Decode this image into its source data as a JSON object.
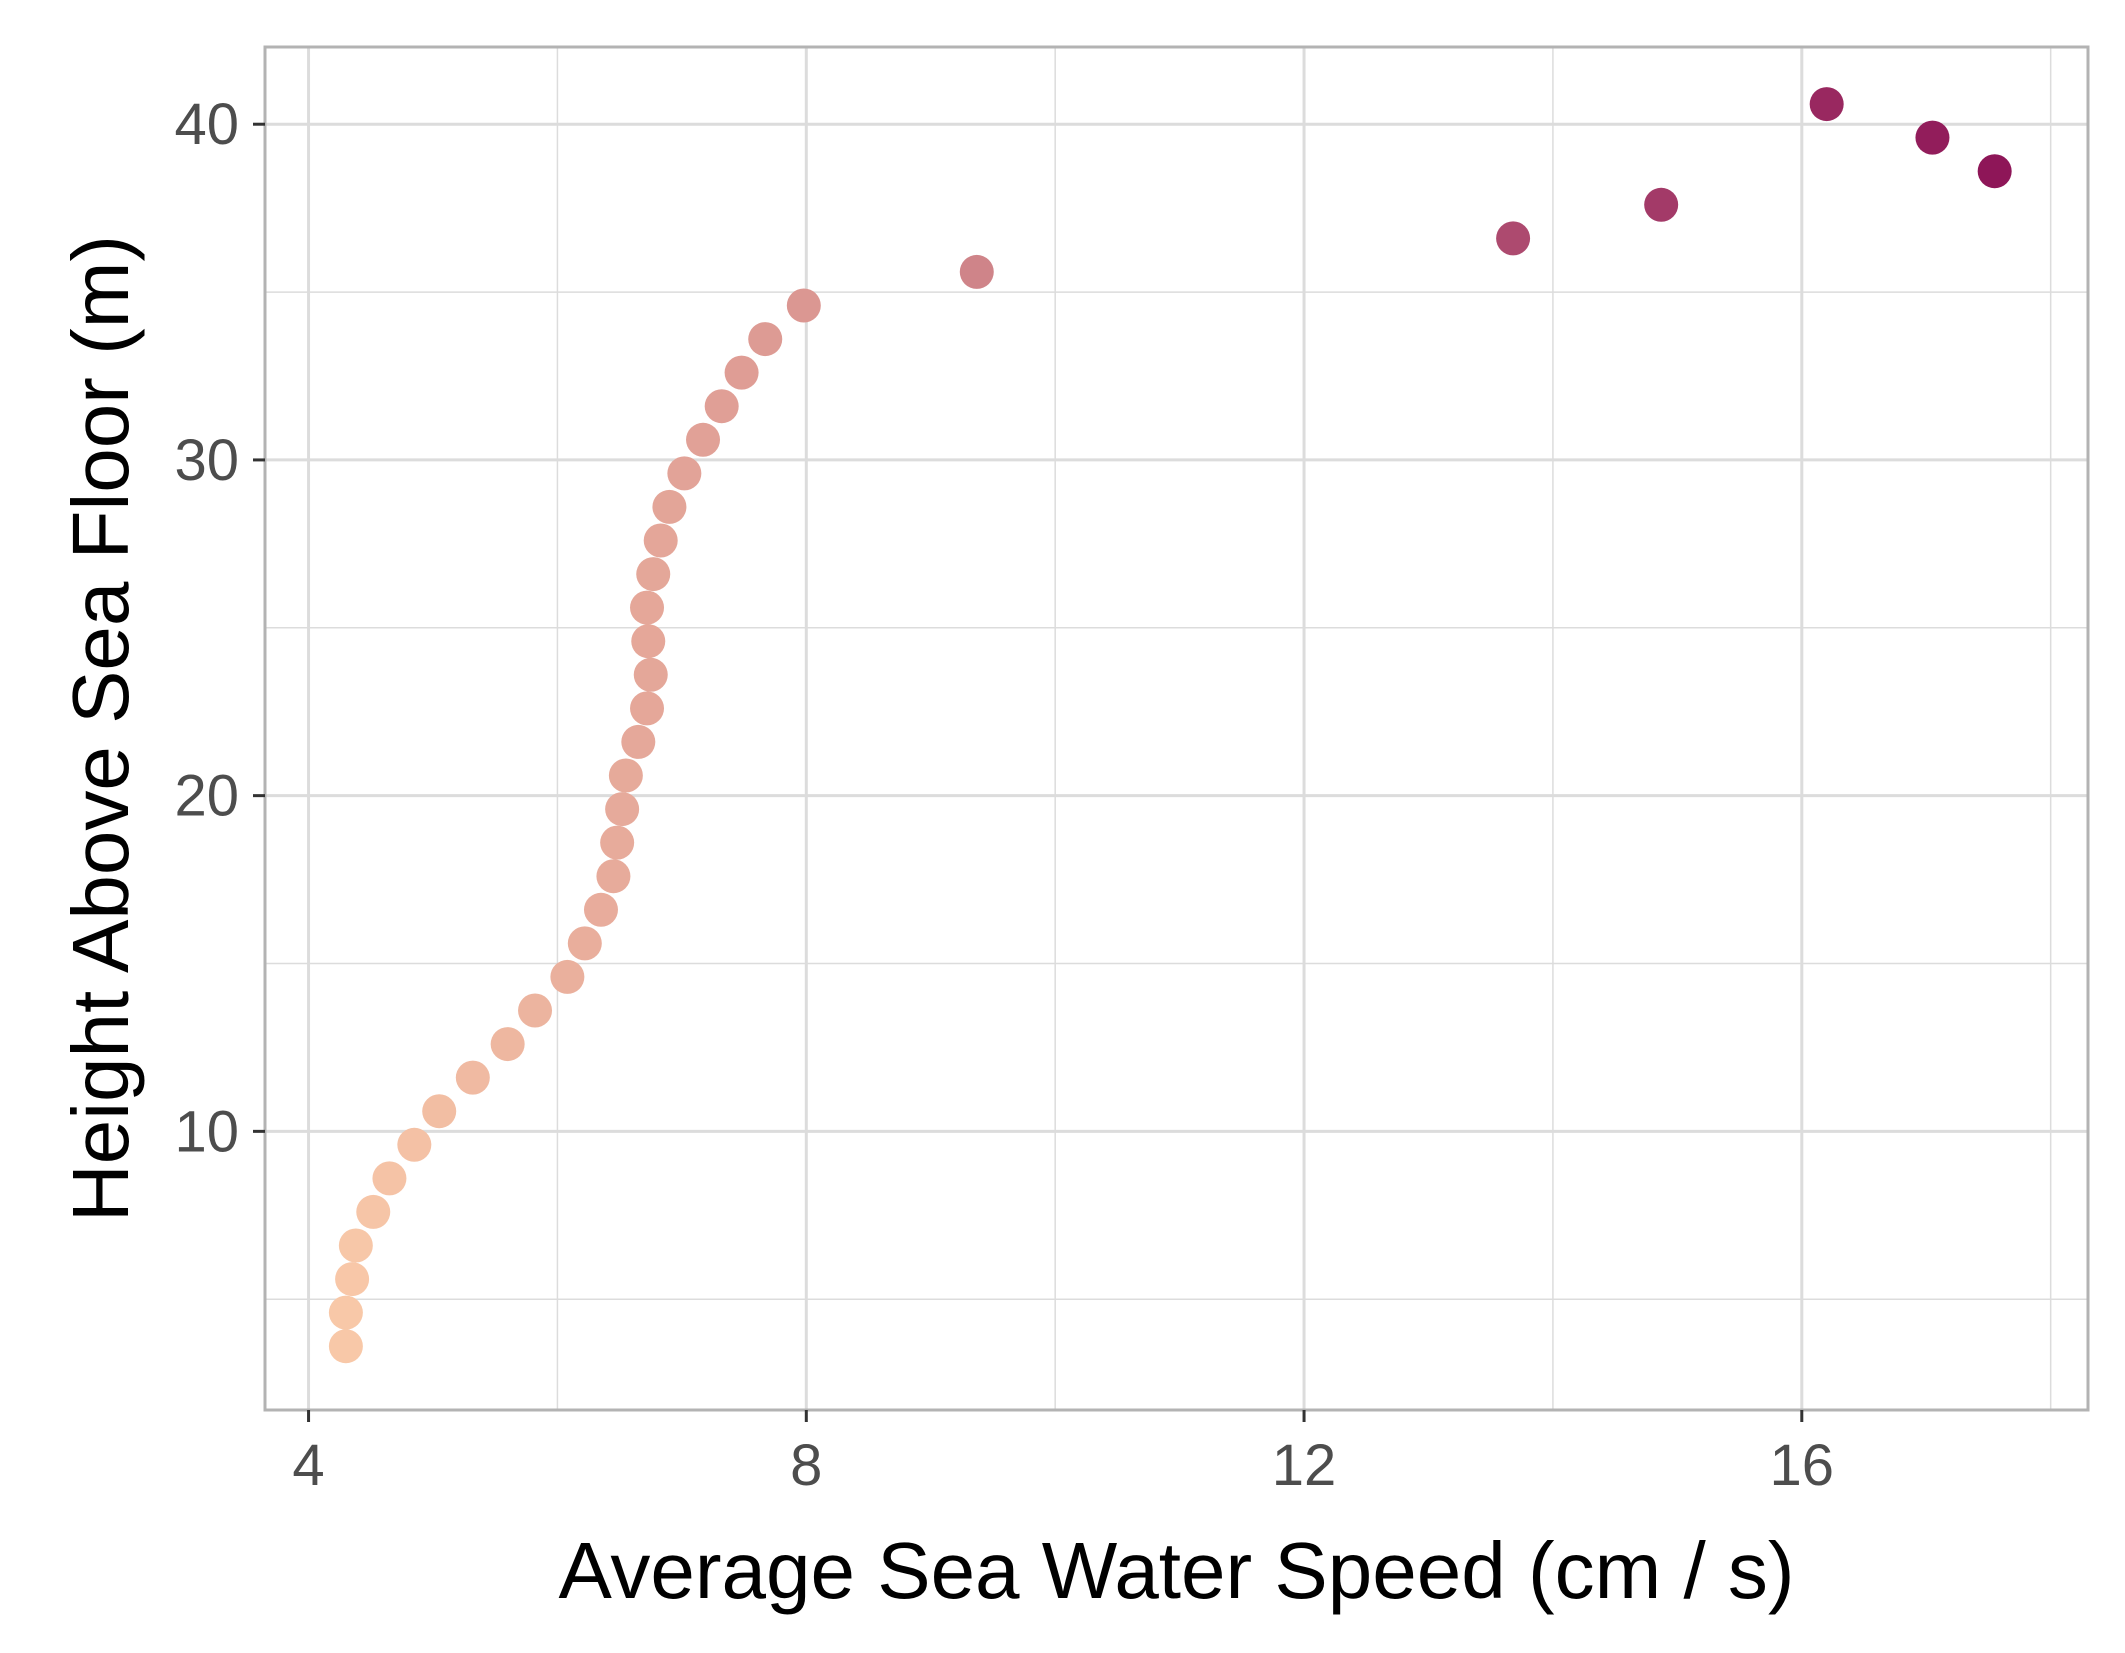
{
  "chart_data": {
    "type": "scatter",
    "title": "",
    "xlabel": "Average Sea Water Speed (cm / s)",
    "ylabel": "Height Above Sea Floor (m)",
    "xlim": [
      3.65,
      18.3
    ],
    "ylim": [
      1.7,
      42.3
    ],
    "xticks": [
      4,
      8,
      12,
      16
    ],
    "yticks": [
      10,
      20,
      30,
      40
    ],
    "grid": true,
    "legend": "none",
    "color_low": "#f8c8a8",
    "color_high": "#8e1658",
    "grid_color": "#dcdcdc",
    "panel_border_color": "#b3b3b3",
    "points": [
      {
        "x": 4.3,
        "y": 3.6
      },
      {
        "x": 4.3,
        "y": 4.6
      },
      {
        "x": 4.35,
        "y": 5.6
      },
      {
        "x": 4.38,
        "y": 6.6
      },
      {
        "x": 4.52,
        "y": 7.6
      },
      {
        "x": 4.65,
        "y": 8.6
      },
      {
        "x": 4.85,
        "y": 9.6
      },
      {
        "x": 5.05,
        "y": 10.6
      },
      {
        "x": 5.32,
        "y": 11.6
      },
      {
        "x": 5.6,
        "y": 12.6
      },
      {
        "x": 5.82,
        "y": 13.6
      },
      {
        "x": 6.08,
        "y": 14.6
      },
      {
        "x": 6.22,
        "y": 15.6
      },
      {
        "x": 6.35,
        "y": 16.6
      },
      {
        "x": 6.45,
        "y": 17.6
      },
      {
        "x": 6.48,
        "y": 18.6
      },
      {
        "x": 6.52,
        "y": 19.6
      },
      {
        "x": 6.55,
        "y": 20.6
      },
      {
        "x": 6.65,
        "y": 21.6
      },
      {
        "x": 6.72,
        "y": 22.6
      },
      {
        "x": 6.75,
        "y": 23.6
      },
      {
        "x": 6.73,
        "y": 24.6
      },
      {
        "x": 6.72,
        "y": 25.6
      },
      {
        "x": 6.77,
        "y": 26.6
      },
      {
        "x": 6.83,
        "y": 27.6
      },
      {
        "x": 6.9,
        "y": 28.6
      },
      {
        "x": 7.02,
        "y": 29.6
      },
      {
        "x": 7.17,
        "y": 30.6
      },
      {
        "x": 7.32,
        "y": 31.6
      },
      {
        "x": 7.48,
        "y": 32.6
      },
      {
        "x": 7.67,
        "y": 33.6
      },
      {
        "x": 7.98,
        "y": 34.6
      },
      {
        "x": 9.37,
        "y": 35.6
      },
      {
        "x": 13.68,
        "y": 36.6
      },
      {
        "x": 14.87,
        "y": 37.6
      },
      {
        "x": 17.55,
        "y": 38.6
      },
      {
        "x": 17.05,
        "y": 39.6
      },
      {
        "x": 16.2,
        "y": 40.6
      }
    ]
  }
}
